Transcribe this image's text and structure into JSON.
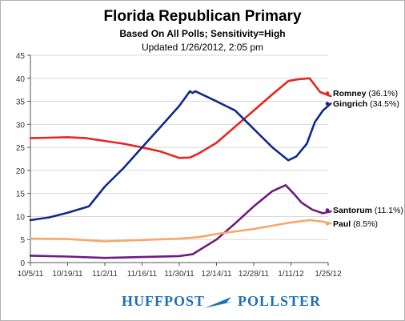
{
  "header": {
    "title": "Florida Republican Primary",
    "subtitle": "Based On All Polls; Sensitivity=High",
    "updated": "Updated 1/26/2012, 2:05 pm"
  },
  "branding": {
    "left": "HUFFPOST",
    "right": "POLLSTER"
  },
  "colors": {
    "romney": "#e8251f",
    "gingrich": "#112a8c",
    "santorum": "#6f1a7f",
    "paul": "#f5a86a",
    "grid": "#d9d9d9",
    "axis": "#555555",
    "brand": "#1d6fb8"
  },
  "chart_data": {
    "type": "line",
    "title": "Florida Republican Primary",
    "subtitle": "Based On All Polls; Sensitivity=High",
    "xlabel": "",
    "ylabel": "",
    "x_ticks": [
      "10/5/11",
      "10/19/11",
      "11/2/11",
      "11/16/11",
      "11/30/11",
      "12/14/11",
      "12/28/11",
      "1/11/12",
      "1/25/12"
    ],
    "ylim": [
      0,
      45
    ],
    "y_ticks": [
      0,
      5,
      10,
      15,
      20,
      25,
      30,
      35,
      40,
      45
    ],
    "grid": true,
    "legend": "right, next to line ends",
    "series": [
      {
        "name": "Romney",
        "label": "Romney (36.1%)",
        "color": "#e8251f",
        "points": [
          [
            "10/5/11",
            27.0
          ],
          [
            "10/12/11",
            27.1
          ],
          [
            "10/19/11",
            27.2
          ],
          [
            "10/26/11",
            27.0
          ],
          [
            "11/2/11",
            26.4
          ],
          [
            "11/9/11",
            25.8
          ],
          [
            "11/16/11",
            25.0
          ],
          [
            "11/23/11",
            24.1
          ],
          [
            "11/30/11",
            22.7
          ],
          [
            "12/4/11",
            22.8
          ],
          [
            "12/7/11",
            23.6
          ],
          [
            "12/14/11",
            26.0
          ],
          [
            "12/21/11",
            29.5
          ],
          [
            "12/28/11",
            33.0
          ],
          [
            "1/4/12",
            36.5
          ],
          [
            "1/10/12",
            39.4
          ],
          [
            "1/14/12",
            39.8
          ],
          [
            "1/18/12",
            40.0
          ],
          [
            "1/22/12",
            37.0
          ],
          [
            "1/26/12",
            36.1
          ]
        ]
      },
      {
        "name": "Gingrich",
        "label": "Gingrich (34.5%)",
        "color": "#112a8c",
        "points": [
          [
            "10/5/11",
            9.2
          ],
          [
            "10/12/11",
            9.8
          ],
          [
            "10/19/11",
            10.8
          ],
          [
            "10/27/11",
            12.2
          ],
          [
            "11/2/11",
            16.5
          ],
          [
            "11/9/11",
            20.5
          ],
          [
            "11/16/11",
            25.0
          ],
          [
            "11/23/11",
            29.5
          ],
          [
            "11/30/11",
            34.0
          ],
          [
            "12/4/11",
            37.2
          ],
          [
            "12/5/11",
            36.8
          ],
          [
            "12/6/11",
            37.2
          ],
          [
            "12/14/11",
            35.0
          ],
          [
            "12/21/11",
            33.0
          ],
          [
            "12/28/11",
            29.0
          ],
          [
            "1/4/12",
            25.0
          ],
          [
            "1/10/12",
            22.2
          ],
          [
            "1/13/12",
            23.0
          ],
          [
            "1/17/12",
            25.8
          ],
          [
            "1/20/12",
            30.5
          ],
          [
            "1/23/12",
            33.0
          ],
          [
            "1/26/12",
            34.5
          ]
        ]
      },
      {
        "name": "Santorum",
        "label": "Santorum (11.1%)",
        "color": "#6f1a7f",
        "points": [
          [
            "10/5/11",
            1.5
          ],
          [
            "10/19/11",
            1.3
          ],
          [
            "11/2/11",
            1.0
          ],
          [
            "11/16/11",
            1.2
          ],
          [
            "11/30/11",
            1.4
          ],
          [
            "12/5/11",
            1.8
          ],
          [
            "12/14/11",
            5.0
          ],
          [
            "12/21/11",
            8.5
          ],
          [
            "12/28/11",
            12.2
          ],
          [
            "1/4/12",
            15.5
          ],
          [
            "1/9/12",
            16.8
          ],
          [
            "1/12/12",
            15.0
          ],
          [
            "1/15/12",
            13.0
          ],
          [
            "1/19/12",
            11.5
          ],
          [
            "1/23/12",
            10.7
          ],
          [
            "1/26/12",
            11.1
          ]
        ]
      },
      {
        "name": "Paul",
        "label": "Paul (8.5%)",
        "color": "#f5a86a",
        "points": [
          [
            "10/5/11",
            5.2
          ],
          [
            "10/19/11",
            5.1
          ],
          [
            "11/2/11",
            4.6
          ],
          [
            "11/16/11",
            4.9
          ],
          [
            "11/30/11",
            5.2
          ],
          [
            "12/7/11",
            5.5
          ],
          [
            "12/14/11",
            6.2
          ],
          [
            "12/28/11",
            7.3
          ],
          [
            "1/11/12",
            8.7
          ],
          [
            "1/18/12",
            9.2
          ],
          [
            "1/23/12",
            8.9
          ],
          [
            "1/26/12",
            8.5
          ]
        ]
      }
    ]
  }
}
